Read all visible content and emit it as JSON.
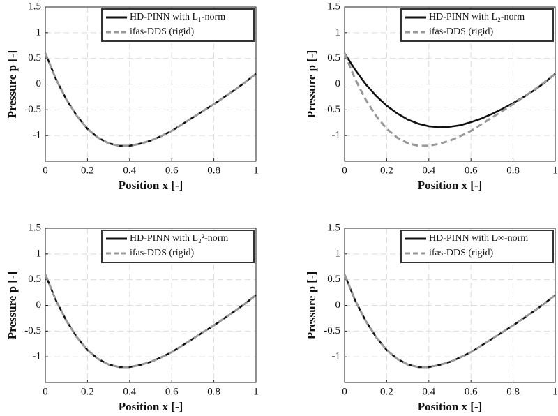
{
  "chart_data": [
    {
      "type": "line",
      "xlabel": "Position x [-]",
      "ylabel": "Pressure p [-]",
      "x": [
        0,
        0.05,
        0.1,
        0.15,
        0.2,
        0.25,
        0.3,
        0.35,
        0.4,
        0.45,
        0.5,
        0.55,
        0.6,
        0.65,
        0.7,
        0.75,
        0.8,
        0.85,
        0.9,
        0.95,
        1
      ],
      "series": [
        {
          "name": "HD-PINN with L₁-norm",
          "color": "#111111",
          "style": "solid",
          "values": [
            0.6,
            0.1,
            -0.3,
            -0.62,
            -0.87,
            -1.04,
            -1.15,
            -1.2,
            -1.2,
            -1.16,
            -1.1,
            -1.01,
            -0.91,
            -0.78,
            -0.65,
            -0.52,
            -0.39,
            -0.25,
            -0.11,
            0.04,
            0.2
          ]
        },
        {
          "name": "ifas-DDS (rigid)",
          "color": "#999999",
          "style": "dashed",
          "values": [
            0.6,
            0.1,
            -0.3,
            -0.62,
            -0.87,
            -1.04,
            -1.15,
            -1.2,
            -1.2,
            -1.16,
            -1.1,
            -1.01,
            -0.91,
            -0.78,
            -0.65,
            -0.52,
            -0.39,
            -0.25,
            -0.11,
            0.04,
            0.2
          ]
        }
      ],
      "xlim": [
        0,
        1
      ],
      "xticks": [
        0,
        0.2,
        0.4,
        0.6,
        0.8,
        1
      ],
      "ylim": [
        -1.5,
        1.5
      ],
      "yticks": [
        -1,
        -0.5,
        0,
        0.5,
        1,
        1.5
      ],
      "grid": true,
      "legend": "upper-right"
    },
    {
      "type": "line",
      "xlabel": "Position x [-]",
      "ylabel": "Pressure p [-]",
      "x": [
        0,
        0.05,
        0.1,
        0.15,
        0.2,
        0.25,
        0.3,
        0.35,
        0.4,
        0.45,
        0.5,
        0.55,
        0.6,
        0.65,
        0.7,
        0.75,
        0.8,
        0.85,
        0.9,
        0.95,
        1
      ],
      "series": [
        {
          "name": "HD-PINN with L₂-norm",
          "color": "#111111",
          "style": "solid",
          "values": [
            0.6,
            0.28,
            0.0,
            -0.23,
            -0.42,
            -0.57,
            -0.69,
            -0.77,
            -0.82,
            -0.84,
            -0.83,
            -0.8,
            -0.74,
            -0.67,
            -0.58,
            -0.48,
            -0.37,
            -0.25,
            -0.12,
            0.03,
            0.2
          ]
        },
        {
          "name": "ifas-DDS (rigid)",
          "color": "#999999",
          "style": "dashed",
          "values": [
            0.6,
            0.1,
            -0.3,
            -0.62,
            -0.87,
            -1.04,
            -1.15,
            -1.2,
            -1.2,
            -1.16,
            -1.1,
            -1.01,
            -0.91,
            -0.78,
            -0.65,
            -0.52,
            -0.39,
            -0.25,
            -0.11,
            0.04,
            0.2
          ]
        }
      ],
      "xlim": [
        0,
        1
      ],
      "xticks": [
        0,
        0.2,
        0.4,
        0.6,
        0.8,
        1
      ],
      "ylim": [
        -1.5,
        1.5
      ],
      "yticks": [
        -1,
        -0.5,
        0,
        0.5,
        1,
        1.5
      ],
      "grid": true,
      "legend": "upper-right"
    },
    {
      "type": "line",
      "xlabel": "Position x [-]",
      "ylabel": "Pressure p [-]",
      "x": [
        0,
        0.05,
        0.1,
        0.15,
        0.2,
        0.25,
        0.3,
        0.35,
        0.4,
        0.45,
        0.5,
        0.55,
        0.6,
        0.65,
        0.7,
        0.75,
        0.8,
        0.85,
        0.9,
        0.95,
        1
      ],
      "series": [
        {
          "name": "HD-PINN with L₂²-norm",
          "color": "#111111",
          "style": "solid",
          "values": [
            0.6,
            0.1,
            -0.3,
            -0.62,
            -0.87,
            -1.04,
            -1.15,
            -1.2,
            -1.2,
            -1.16,
            -1.1,
            -1.01,
            -0.91,
            -0.78,
            -0.65,
            -0.52,
            -0.39,
            -0.25,
            -0.11,
            0.04,
            0.2
          ]
        },
        {
          "name": "ifas-DDS (rigid)",
          "color": "#999999",
          "style": "dashed",
          "values": [
            0.6,
            0.1,
            -0.3,
            -0.62,
            -0.87,
            -1.04,
            -1.15,
            -1.2,
            -1.2,
            -1.16,
            -1.1,
            -1.01,
            -0.91,
            -0.78,
            -0.65,
            -0.52,
            -0.39,
            -0.25,
            -0.11,
            0.04,
            0.2
          ]
        }
      ],
      "xlim": [
        0,
        1
      ],
      "xticks": [
        0,
        0.2,
        0.4,
        0.6,
        0.8,
        1
      ],
      "ylim": [
        -1.5,
        1.5
      ],
      "yticks": [
        -1,
        -0.5,
        0,
        0.5,
        1,
        1.5
      ],
      "grid": true,
      "legend": "upper-right"
    },
    {
      "type": "line",
      "xlabel": "Position x [-]",
      "ylabel": "Pressure p [-]",
      "x": [
        0,
        0.05,
        0.1,
        0.15,
        0.2,
        0.25,
        0.3,
        0.35,
        0.4,
        0.45,
        0.5,
        0.55,
        0.6,
        0.65,
        0.7,
        0.75,
        0.8,
        0.85,
        0.9,
        0.95,
        1
      ],
      "series": [
        {
          "name": "HD-PINN with L∞-norm",
          "color": "#111111",
          "style": "solid",
          "values": [
            0.6,
            0.1,
            -0.3,
            -0.62,
            -0.87,
            -1.04,
            -1.15,
            -1.2,
            -1.2,
            -1.16,
            -1.1,
            -1.01,
            -0.91,
            -0.78,
            -0.65,
            -0.52,
            -0.39,
            -0.25,
            -0.11,
            0.04,
            0.2
          ]
        },
        {
          "name": "ifas-DDS (rigid)",
          "color": "#999999",
          "style": "dashed",
          "values": [
            0.6,
            0.1,
            -0.3,
            -0.62,
            -0.87,
            -1.04,
            -1.15,
            -1.2,
            -1.2,
            -1.16,
            -1.1,
            -1.01,
            -0.91,
            -0.78,
            -0.65,
            -0.52,
            -0.39,
            -0.25,
            -0.11,
            0.04,
            0.2
          ]
        }
      ],
      "xlim": [
        0,
        1
      ],
      "xticks": [
        0,
        0.2,
        0.4,
        0.6,
        0.8,
        1
      ],
      "ylim": [
        -1.5,
        1.5
      ],
      "yticks": [
        -1,
        -0.5,
        0,
        0.5,
        1,
        1.5
      ],
      "grid": true,
      "legend": "upper-right"
    }
  ]
}
